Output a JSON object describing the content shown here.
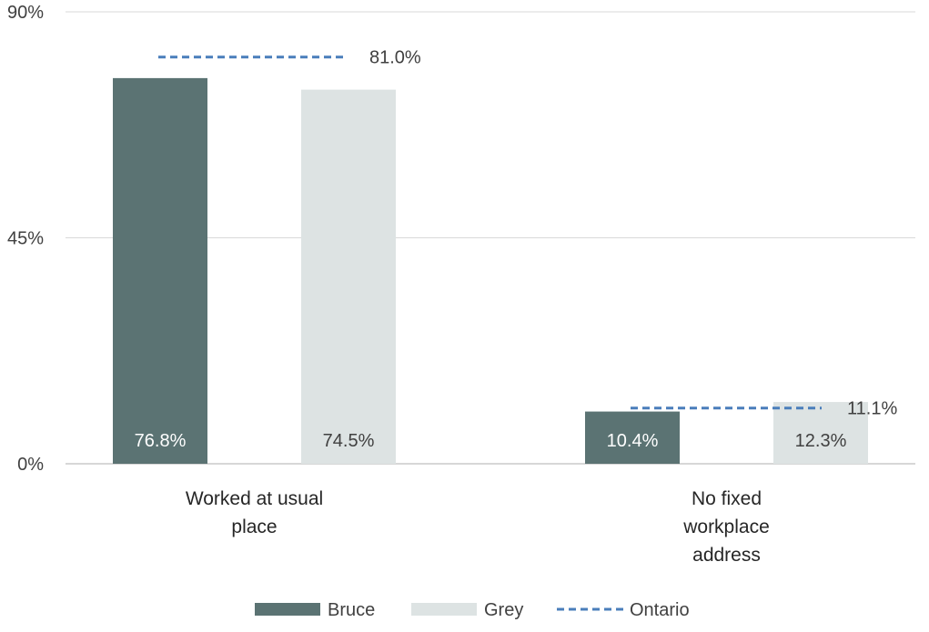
{
  "chart_data": {
    "type": "bar",
    "title": "",
    "xlabel": "",
    "ylabel": "",
    "ylim": [
      0,
      90
    ],
    "yticks": [
      0,
      45,
      90
    ],
    "ytick_labels": [
      "0%",
      "45%",
      "90%"
    ],
    "grid": true,
    "categories": [
      [
        "Worked at usual",
        "place"
      ],
      [
        "No fixed",
        "workplace",
        "address"
      ]
    ],
    "series": [
      {
        "name": "Bruce",
        "type": "bar",
        "color": "#5b7373",
        "label_color": "#ffffff",
        "values": [
          76.8,
          10.4
        ],
        "labels": [
          "76.8%",
          "10.4%"
        ]
      },
      {
        "name": "Grey",
        "type": "bar",
        "color": "#dde3e3",
        "label_color": "#404040",
        "values": [
          74.5,
          12.3
        ],
        "labels": [
          "74.5%",
          "12.3%"
        ]
      },
      {
        "name": "Ontario",
        "type": "reference-dashed",
        "color": "#4a7ebb",
        "values": [
          81.0,
          11.1
        ],
        "labels": [
          "81.0%",
          "11.1%"
        ]
      }
    ],
    "legend_position": "bottom",
    "grid_color": "#d9d9d9",
    "axis_color": "#bfbfbf"
  }
}
